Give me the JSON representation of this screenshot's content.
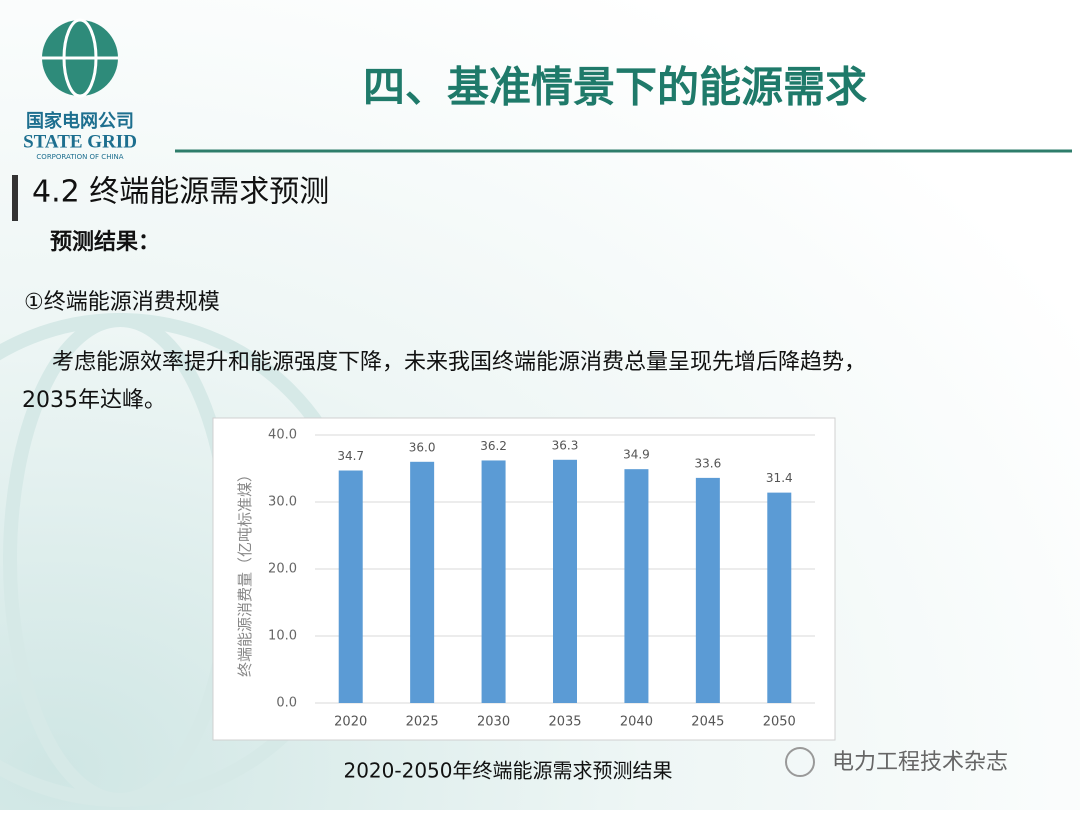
{
  "logo": {
    "cn": "国家电网公司",
    "en": "STATE GRID",
    "sub": "CORPORATION OF CHINA"
  },
  "header": {
    "title": "四、基准情景下的能源需求"
  },
  "section": "4.2 终端能源需求预测",
  "subhead": "预测结果：",
  "item": "①终端能源消费规模",
  "paragraph": [
    "考虑能源效率提升和能源强度下降，未来我国终端能源消费总量呈现先增后降趋势，",
    "2035年达峰。"
  ],
  "chart_data": {
    "type": "bar",
    "categories": [
      "2020",
      "2025",
      "2030",
      "2035",
      "2040",
      "2045",
      "2050"
    ],
    "values": [
      34.7,
      36.0,
      36.2,
      36.3,
      34.9,
      33.6,
      31.4
    ],
    "value_labels": [
      "34.7",
      "36.0",
      "36.2",
      "36.3",
      "34.9",
      "33.6",
      "31.4"
    ],
    "color": "#5b9bd5",
    "ylabel": "终端能源消费量（亿吨标准煤）",
    "ylim": [
      0,
      40
    ],
    "yticks": [
      {
        "value": 0,
        "label": "0.0"
      },
      {
        "value": 10,
        "label": "10.0"
      },
      {
        "value": 20,
        "label": "20.0"
      },
      {
        "value": 30,
        "label": "30.0"
      },
      {
        "value": 40,
        "label": "40.0"
      }
    ],
    "grid": true
  },
  "caption": "2020-2050年终端能源需求预测结果",
  "watermark": "电力工程技术杂志"
}
